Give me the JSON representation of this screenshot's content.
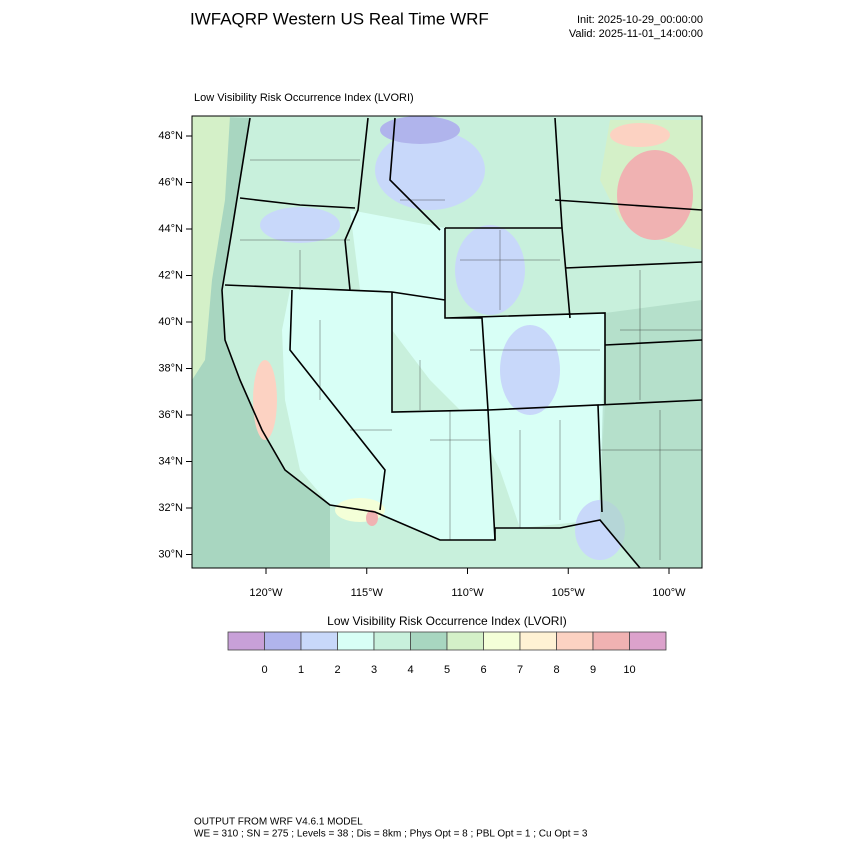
{
  "header": {
    "title": "IWFAQRP Western US Real Time WRF",
    "init": "Init: 2025-10-29_00:00:00",
    "valid": "Valid: 2025-11-01_14:00:00"
  },
  "map": {
    "title": "Low Visibility Risk Occurrence Index   (LVORI)",
    "lat_labels": [
      "48°N",
      "46°N",
      "44°N",
      "42°N",
      "40°N",
      "38°N",
      "36°N",
      "34°N",
      "32°N",
      "30°N"
    ],
    "lon_labels": [
      "120°W",
      "115°W",
      "110°W",
      "105°W",
      "100°W"
    ]
  },
  "colorbar": {
    "title": "Low Visibility Risk Occurrence Index  (LVORI)",
    "labels": [
      0,
      1,
      2,
      3,
      4,
      5,
      6,
      7,
      8,
      9,
      10
    ],
    "colors": [
      "#c8a0d8",
      "#b0b4ec",
      "#c8d8fa",
      "#d8fff6",
      "#c8f0dc",
      "#a8d6c0",
      "#d4f0c8",
      "#f4ffd8",
      "#fff2d4",
      "#fcd2c2",
      "#f0b2b2",
      "#dca2cc"
    ]
  },
  "footer": {
    "line1": "OUTPUT FROM WRF V4.6.1 MODEL",
    "line2": "WE = 310 ; SN = 275 ; Levels = 38 ; Dis = 8km ; Phys Opt = 8 ; PBL Opt = 1 ; Cu Opt = 3"
  }
}
